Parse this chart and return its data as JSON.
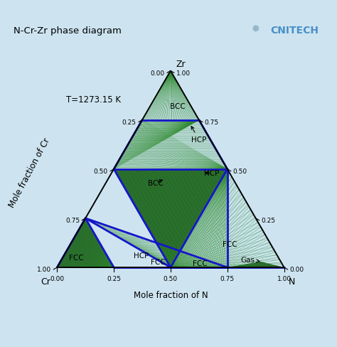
{
  "title": "N-Cr-Zr phase diagram",
  "temperature_label": "T=1273.15 K",
  "bg_color": "#cde4f0",
  "xlabel": "Mole fraction of N",
  "ylabel_left": "Mole fraction of Cr",
  "dark_green": "#1a5c1a",
  "mid_green": "#2e8b2e",
  "light_green": "#90c890",
  "blue_line": "#1515cc",
  "tick_values": [
    0.0,
    0.25,
    0.5,
    0.75,
    1.0
  ],
  "phase_labels": [
    {
      "text": "BCC",
      "N": 0.12,
      "Cr": 0.06,
      "Zr": 0.82,
      "arrow": null
    },
    {
      "text": "HCP",
      "N": 0.3,
      "Cr": 0.05,
      "Zr": 0.65,
      "arrow": [
        0.22,
        0.05,
        0.73
      ]
    },
    {
      "text": "HCP",
      "N": 0.44,
      "Cr": 0.08,
      "Zr": 0.48,
      "arrow": [
        0.4,
        0.12,
        0.48
      ]
    },
    {
      "text": "BCC",
      "N": 0.22,
      "Cr": 0.35,
      "Zr": 0.43,
      "arrow": [
        0.25,
        0.3,
        0.45
      ]
    },
    {
      "text": "FCC",
      "N": 0.7,
      "Cr": 0.18,
      "Zr": 0.12,
      "arrow": null
    },
    {
      "text": "HCP",
      "N": 0.34,
      "Cr": 0.6,
      "Zr": 0.06,
      "arrow": null
    },
    {
      "text": "FCC",
      "N": 0.06,
      "Cr": 0.89,
      "Zr": 0.05,
      "arrow": null
    },
    {
      "text": "FCC",
      "N": 0.43,
      "Cr": 0.54,
      "Zr": 0.03,
      "arrow": null
    },
    {
      "text": "FCC",
      "N": 0.62,
      "Cr": 0.36,
      "Zr": 0.02,
      "arrow": null
    },
    {
      "text": "Gas",
      "N": 0.82,
      "Cr": 0.14,
      "Zr": 0.04,
      "arrow": [
        0.88,
        0.09,
        0.03
      ]
    }
  ]
}
